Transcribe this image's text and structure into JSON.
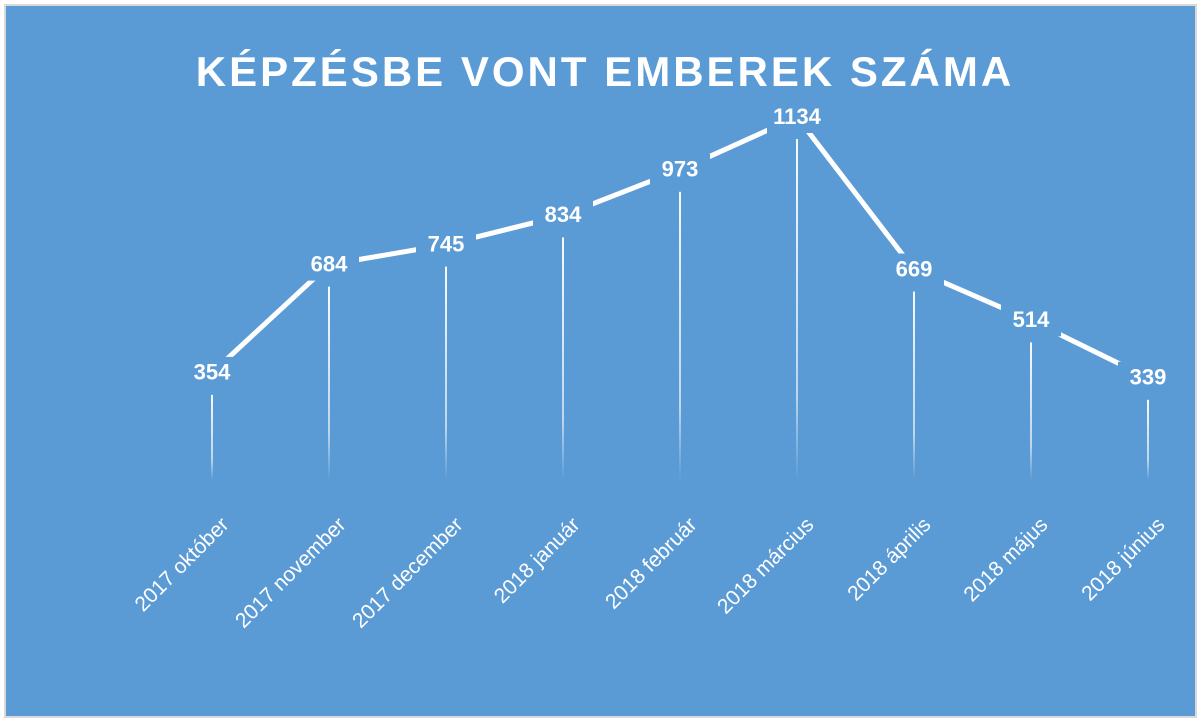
{
  "chart_data": {
    "type": "line",
    "title": "KÉPZÉSBE VONT EMBEREK SZÁMA",
    "categories": [
      "2017 október",
      "2017 november",
      "2017 december",
      "2018 január",
      "2018 február",
      "2018 március",
      "2018 április",
      "2018 május",
      "2018 június"
    ],
    "values": [
      354,
      684,
      745,
      834,
      973,
      1134,
      669,
      514,
      339
    ],
    "color": "#ffffff",
    "background": "#5b9bd5"
  }
}
